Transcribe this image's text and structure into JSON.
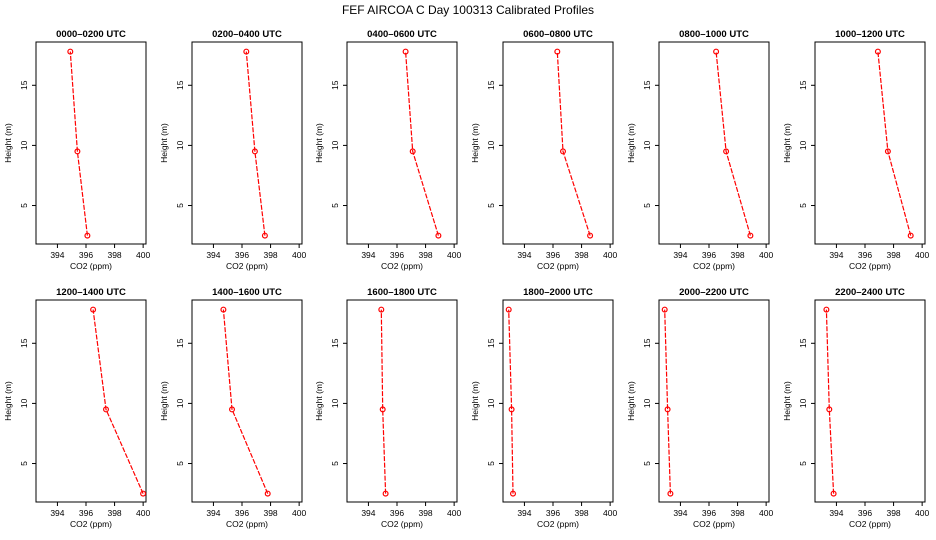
{
  "colors": {
    "line": "#ff0000",
    "axis": "#000000",
    "background": "#ffffff"
  },
  "title": "FEF AIRCOA C  Day 100313  Calibrated Profiles",
  "chart_data": [
    {
      "type": "line",
      "title": "0000–0200 UTC",
      "xlabel": "CO2 (ppm)",
      "ylabel": "Height (m)",
      "x": [
        396.1,
        395.4,
        394.9
      ],
      "y": [
        2.5,
        9.5,
        17.8
      ],
      "xlim": [
        392.5,
        400.2
      ],
      "ylim": [
        1.8,
        18.6
      ],
      "xticks": [
        394,
        396,
        398,
        400
      ],
      "yticks": [
        5,
        10,
        15
      ]
    },
    {
      "type": "line",
      "title": "0200–0400 UTC",
      "xlabel": "CO2 (ppm)",
      "ylabel": "Height (m)",
      "x": [
        397.6,
        396.9,
        396.3
      ],
      "y": [
        2.5,
        9.5,
        17.8
      ],
      "xlim": [
        392.5,
        400.2
      ],
      "ylim": [
        1.8,
        18.6
      ],
      "xticks": [
        394,
        396,
        398,
        400
      ],
      "yticks": [
        5,
        10,
        15
      ]
    },
    {
      "type": "line",
      "title": "0400–0600 UTC",
      "xlabel": "CO2 (ppm)",
      "ylabel": "Height (m)",
      "x": [
        398.9,
        397.1,
        396.6
      ],
      "y": [
        2.5,
        9.5,
        17.8
      ],
      "xlim": [
        392.5,
        400.2
      ],
      "ylim": [
        1.8,
        18.6
      ],
      "xticks": [
        394,
        396,
        398,
        400
      ],
      "yticks": [
        5,
        10,
        15
      ]
    },
    {
      "type": "line",
      "title": "0600–0800 UTC",
      "xlabel": "CO2 (ppm)",
      "ylabel": "Height (m)",
      "x": [
        398.6,
        396.7,
        396.3
      ],
      "y": [
        2.5,
        9.5,
        17.8
      ],
      "xlim": [
        392.5,
        400.2
      ],
      "ylim": [
        1.8,
        18.6
      ],
      "xticks": [
        394,
        396,
        398,
        400
      ],
      "yticks": [
        5,
        10,
        15
      ]
    },
    {
      "type": "line",
      "title": "0800–1000 UTC",
      "xlabel": "CO2 (ppm)",
      "ylabel": "Height (m)",
      "x": [
        398.9,
        397.2,
        396.5
      ],
      "y": [
        2.5,
        9.5,
        17.8
      ],
      "xlim": [
        392.5,
        400.2
      ],
      "ylim": [
        1.8,
        18.6
      ],
      "xticks": [
        394,
        396,
        398,
        400
      ],
      "yticks": [
        5,
        10,
        15
      ]
    },
    {
      "type": "line",
      "title": "1000–1200 UTC",
      "xlabel": "CO2 (ppm)",
      "ylabel": "Height (m)",
      "x": [
        399.2,
        397.6,
        396.9
      ],
      "y": [
        2.5,
        9.5,
        17.8
      ],
      "xlim": [
        392.5,
        400.2
      ],
      "ylim": [
        1.8,
        18.6
      ],
      "xticks": [
        394,
        396,
        398,
        400
      ],
      "yticks": [
        5,
        10,
        15
      ]
    },
    {
      "type": "line",
      "title": "1200–1400 UTC",
      "xlabel": "CO2 (ppm)",
      "ylabel": "Height (m)",
      "x": [
        400.0,
        397.4,
        396.5
      ],
      "y": [
        2.5,
        9.5,
        17.8
      ],
      "xlim": [
        392.5,
        400.2
      ],
      "ylim": [
        1.8,
        18.6
      ],
      "xticks": [
        394,
        396,
        398,
        400
      ],
      "yticks": [
        5,
        10,
        15
      ]
    },
    {
      "type": "line",
      "title": "1400–1600 UTC",
      "xlabel": "CO2 (ppm)",
      "ylabel": "Height (m)",
      "x": [
        397.8,
        395.3,
        394.7
      ],
      "y": [
        2.5,
        9.5,
        17.8
      ],
      "xlim": [
        392.5,
        400.2
      ],
      "ylim": [
        1.8,
        18.6
      ],
      "xticks": [
        394,
        396,
        398,
        400
      ],
      "yticks": [
        5,
        10,
        15
      ]
    },
    {
      "type": "line",
      "title": "1600–1800 UTC",
      "xlabel": "CO2 (ppm)",
      "ylabel": "Height (m)",
      "x": [
        395.2,
        395.0,
        394.9
      ],
      "y": [
        2.5,
        9.5,
        17.8
      ],
      "xlim": [
        392.5,
        400.2
      ],
      "ylim": [
        1.8,
        18.6
      ],
      "xticks": [
        394,
        396,
        398,
        400
      ],
      "yticks": [
        5,
        10,
        15
      ]
    },
    {
      "type": "line",
      "title": "1800–2000 UTC",
      "xlabel": "CO2 (ppm)",
      "ylabel": "Height (m)",
      "x": [
        393.2,
        393.1,
        392.9
      ],
      "y": [
        2.5,
        9.5,
        17.8
      ],
      "xlim": [
        392.5,
        400.2
      ],
      "ylim": [
        1.8,
        18.6
      ],
      "xticks": [
        394,
        396,
        398,
        400
      ],
      "yticks": [
        5,
        10,
        15
      ]
    },
    {
      "type": "line",
      "title": "2000–2200 UTC",
      "xlabel": "CO2 (ppm)",
      "ylabel": "Height (m)",
      "x": [
        393.3,
        393.1,
        392.9
      ],
      "y": [
        2.5,
        9.5,
        17.8
      ],
      "xlim": [
        392.5,
        400.2
      ],
      "ylim": [
        1.8,
        18.6
      ],
      "xticks": [
        394,
        396,
        398,
        400
      ],
      "yticks": [
        5,
        10,
        15
      ]
    },
    {
      "type": "line",
      "title": "2200–2400 UTC",
      "xlabel": "CO2 (ppm)",
      "ylabel": "Height (m)",
      "x": [
        393.8,
        393.5,
        393.3
      ],
      "y": [
        2.5,
        9.5,
        17.8
      ],
      "xlim": [
        392.5,
        400.2
      ],
      "ylim": [
        1.8,
        18.6
      ],
      "xticks": [
        394,
        396,
        398,
        400
      ],
      "yticks": [
        5,
        10,
        15
      ]
    }
  ]
}
